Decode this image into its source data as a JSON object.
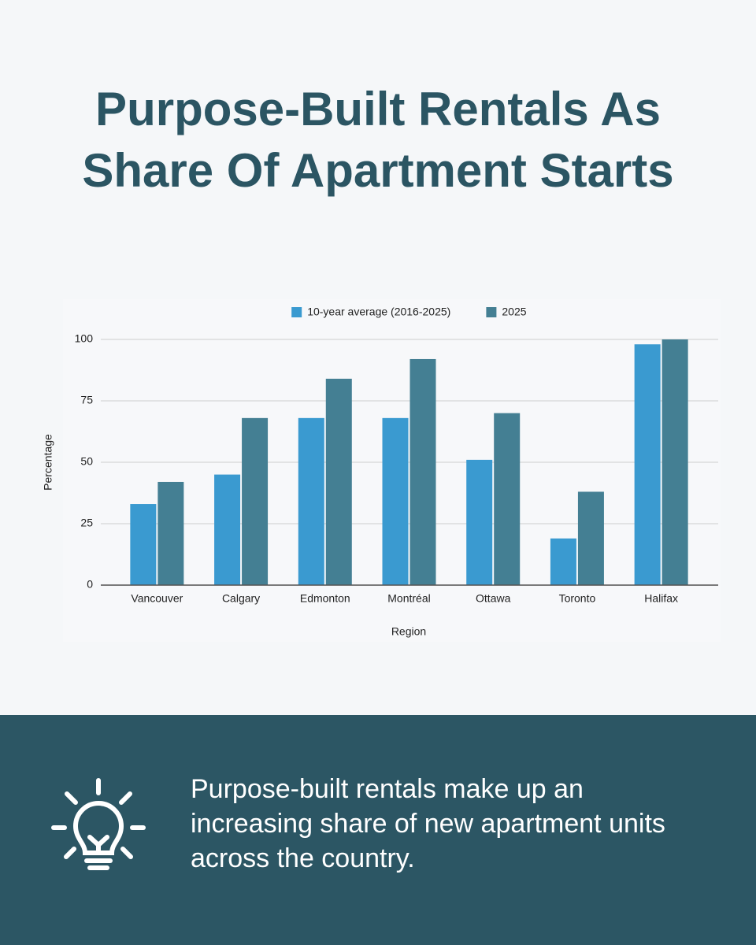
{
  "title": "Purpose-Built Rentals As Share Of Apartment Starts",
  "chart_data": {
    "type": "bar",
    "categories": [
      "Vancouver",
      "Calgary",
      "Edmonton",
      "Montréal",
      "Ottawa",
      "Toronto",
      "Halifax"
    ],
    "series": [
      {
        "name": "10-year average (2016-2025)",
        "color": "#3a9ad0",
        "values": [
          33,
          45,
          68,
          68,
          51,
          19,
          98
        ]
      },
      {
        "name": "2025",
        "color": "#447f93",
        "values": [
          42,
          68,
          84,
          92,
          70,
          38,
          100
        ]
      }
    ],
    "ylim": [
      0,
      100
    ],
    "yticks": [
      0,
      25,
      50,
      75,
      100
    ],
    "grid": true,
    "ylabel": "Percentage",
    "xlabel": "Region",
    "legend": "top"
  },
  "caption": "Purpose-built rentals make up an increasing share of new apartment units across the country."
}
